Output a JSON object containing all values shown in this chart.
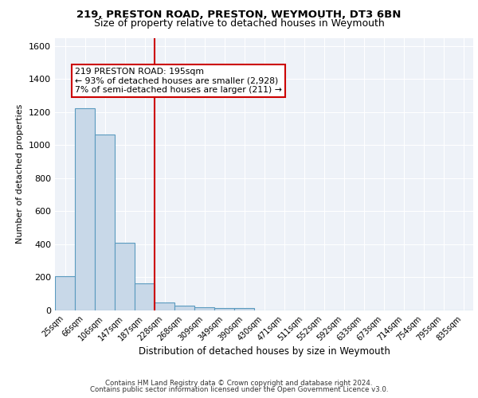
{
  "title1": "219, PRESTON ROAD, PRESTON, WEYMOUTH, DT3 6BN",
  "title2": "Size of property relative to detached houses in Weymouth",
  "xlabel": "Distribution of detached houses by size in Weymouth",
  "ylabel": "Number of detached properties",
  "bar_labels": [
    "25sqm",
    "66sqm",
    "106sqm",
    "147sqm",
    "187sqm",
    "228sqm",
    "268sqm",
    "309sqm",
    "349sqm",
    "390sqm",
    "430sqm",
    "471sqm",
    "511sqm",
    "552sqm",
    "592sqm",
    "633sqm",
    "673sqm",
    "714sqm",
    "754sqm",
    "795sqm",
    "835sqm"
  ],
  "bar_values": [
    205,
    1225,
    1065,
    410,
    165,
    50,
    28,
    20,
    15,
    15,
    0,
    0,
    0,
    0,
    0,
    0,
    0,
    0,
    0,
    0,
    0
  ],
  "bar_color": "#c8d8e8",
  "bar_edge_color": "#5a9abf",
  "vline_x": 4.5,
  "vline_color": "#cc0000",
  "annotation_text": "219 PRESTON ROAD: 195sqm\n← 93% of detached houses are smaller (2,928)\n7% of semi-detached houses are larger (211) →",
  "annotation_box_color": "#ffffff",
  "annotation_box_edge": "#cc0000",
  "ylim": [
    0,
    1650
  ],
  "yticks": [
    0,
    200,
    400,
    600,
    800,
    1000,
    1200,
    1400,
    1600
  ],
  "footer1": "Contains HM Land Registry data © Crown copyright and database right 2024.",
  "footer2": "Contains public sector information licensed under the Open Government Licence v3.0.",
  "bg_color": "#eef2f8"
}
